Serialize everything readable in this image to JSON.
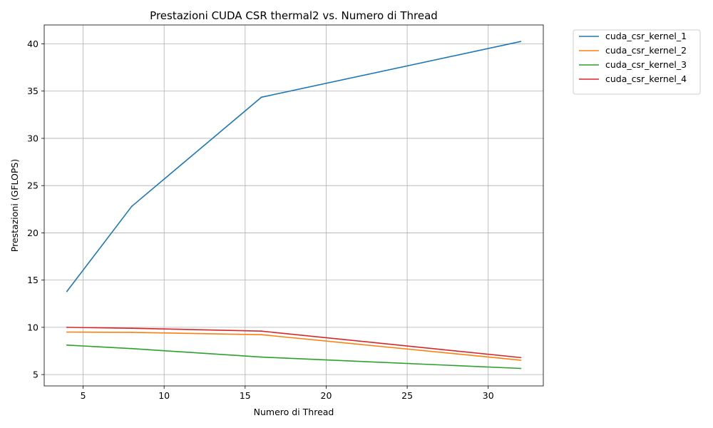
{
  "chart_data": {
    "type": "line",
    "title": "Prestazioni CUDA CSR thermal2 vs. Numero di Thread",
    "xlabel": "Numero di Thread",
    "ylabel": "Prestazioni (GFLOPS)",
    "x": [
      4,
      8,
      16,
      32
    ],
    "xlim": [
      2.6,
      33.4
    ],
    "ylim": [
      3.8,
      42.0
    ],
    "xticks": [
      5,
      10,
      15,
      20,
      25,
      30
    ],
    "yticks": [
      5,
      10,
      15,
      20,
      25,
      30,
      35,
      40
    ],
    "grid": true,
    "legend_position": "outside-top-right",
    "series": [
      {
        "name": "cuda_csr_kernel_1",
        "color": "#1f77b4",
        "values": [
          13.8,
          22.8,
          34.35,
          40.25
        ]
      },
      {
        "name": "cuda_csr_kernel_2",
        "color": "#ff7f0e",
        "values": [
          9.5,
          9.47,
          9.22,
          6.52
        ]
      },
      {
        "name": "cuda_csr_kernel_3",
        "color": "#2ca02c",
        "values": [
          8.12,
          7.75,
          6.85,
          5.65
        ]
      },
      {
        "name": "cuda_csr_kernel_4",
        "color": "#d62728",
        "values": [
          10.0,
          9.9,
          9.6,
          6.8
        ]
      }
    ]
  }
}
